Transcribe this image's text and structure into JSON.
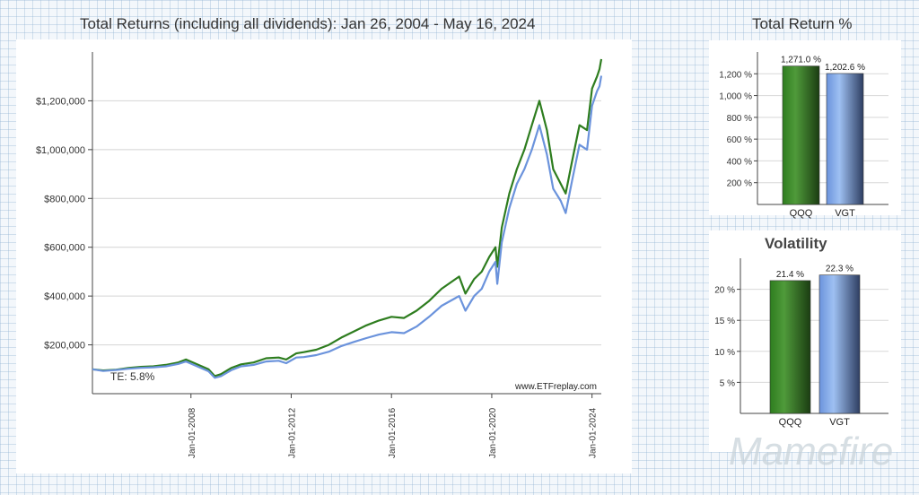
{
  "chart_data": [
    {
      "type": "line",
      "title": "Total Returns (including all dividends): Jan 26, 2004 - May 16, 2024",
      "y_ticks": [
        200000,
        400000,
        600000,
        800000,
        1000000,
        1200000
      ],
      "y_tick_labels": [
        "$200,000",
        "$400,000",
        "$600,000",
        "$800,000",
        "$1,000,000",
        "$1,200,000"
      ],
      "ylim": [
        0,
        1400000
      ],
      "x_ticks": [
        2008,
        2012,
        2016,
        2020,
        2024
      ],
      "x_tick_labels": [
        "Jan-01-2008",
        "Jan-01-2012",
        "Jan-01-2016",
        "Jan-01-2020",
        "Jan-01-2024"
      ],
      "xlim": [
        2004.07,
        2024.37
      ],
      "grid": true,
      "annotation": "TE:  5.8%",
      "source": "www.ETFreplay.com",
      "series": [
        {
          "color": "#2e7d1f",
          "x": [
            2004.07,
            2004.5,
            2005.0,
            2005.5,
            2006.0,
            2006.5,
            2007.0,
            2007.5,
            2007.8,
            2008.3,
            2008.7,
            2008.95,
            2009.2,
            2009.6,
            2010.0,
            2010.5,
            2011.0,
            2011.5,
            2011.8,
            2012.2,
            2012.5,
            2013.0,
            2013.5,
            2014.0,
            2014.5,
            2015.0,
            2015.5,
            2016.0,
            2016.5,
            2017.0,
            2017.5,
            2018.0,
            2018.7,
            2018.95,
            2019.3,
            2019.6,
            2019.9,
            2020.15,
            2020.22,
            2020.4,
            2020.7,
            2021.0,
            2021.3,
            2021.6,
            2021.9,
            2022.2,
            2022.45,
            2022.75,
            2022.95,
            2023.2,
            2023.5,
            2023.8,
            2024.0,
            2024.2,
            2024.3,
            2024.37
          ],
          "y": [
            100000,
            95000,
            98000,
            105000,
            110000,
            112000,
            118000,
            128000,
            140000,
            118000,
            100000,
            72000,
            80000,
            105000,
            120000,
            128000,
            145000,
            148000,
            140000,
            165000,
            170000,
            180000,
            200000,
            230000,
            255000,
            280000,
            300000,
            315000,
            310000,
            340000,
            380000,
            430000,
            480000,
            410000,
            470000,
            500000,
            560000,
            600000,
            520000,
            680000,
            820000,
            920000,
            1000000,
            1100000,
            1200000,
            1080000,
            920000,
            860000,
            820000,
            950000,
            1100000,
            1080000,
            1250000,
            1300000,
            1330000,
            1371000
          ]
        },
        {
          "color": "#6b93dc",
          "x": [
            2004.07,
            2004.5,
            2005.0,
            2005.5,
            2006.0,
            2006.5,
            2007.0,
            2007.5,
            2007.8,
            2008.3,
            2008.7,
            2008.95,
            2009.2,
            2009.6,
            2010.0,
            2010.5,
            2011.0,
            2011.5,
            2011.8,
            2012.2,
            2012.5,
            2013.0,
            2013.5,
            2014.0,
            2014.5,
            2015.0,
            2015.5,
            2016.0,
            2016.5,
            2017.0,
            2017.5,
            2018.0,
            2018.7,
            2018.95,
            2019.3,
            2019.6,
            2019.9,
            2020.15,
            2020.22,
            2020.4,
            2020.7,
            2021.0,
            2021.3,
            2021.6,
            2021.9,
            2022.2,
            2022.45,
            2022.75,
            2022.95,
            2023.2,
            2023.5,
            2023.8,
            2024.0,
            2024.2,
            2024.3,
            2024.37
          ],
          "y": [
            100000,
            93000,
            97000,
            102000,
            106000,
            108000,
            112000,
            122000,
            132000,
            110000,
            92000,
            65000,
            72000,
            96000,
            112000,
            118000,
            132000,
            135000,
            125000,
            148000,
            150000,
            158000,
            172000,
            195000,
            212000,
            228000,
            242000,
            252000,
            248000,
            275000,
            315000,
            360000,
            400000,
            340000,
            400000,
            430000,
            500000,
            540000,
            450000,
            620000,
            760000,
            860000,
            920000,
            1000000,
            1100000,
            980000,
            840000,
            790000,
            740000,
            870000,
            1020000,
            1000000,
            1180000,
            1240000,
            1260000,
            1302600
          ]
        }
      ]
    },
    {
      "type": "bar",
      "title": "Total Return %",
      "categories": [
        "QQQ",
        "VGT"
      ],
      "values": [
        1271.0,
        1202.6
      ],
      "value_labels": [
        "1,271.0 %",
        "1,202.6 %"
      ],
      "y_ticks": [
        200,
        400,
        600,
        800,
        1000,
        1200
      ],
      "y_tick_labels": [
        "200 %",
        "400 %",
        "600 %",
        "800 %",
        "1,000 %",
        "1,200 %"
      ],
      "ylim": [
        0,
        1400
      ],
      "grid": true,
      "colors": [
        "#2e7d1f",
        "#6b93dc"
      ]
    },
    {
      "type": "bar",
      "title": "Volatility",
      "categories": [
        "QQQ",
        "VGT"
      ],
      "values": [
        21.4,
        22.3
      ],
      "value_labels": [
        "21.4 %",
        "22.3 %"
      ],
      "y_ticks": [
        5,
        10,
        15,
        20
      ],
      "y_tick_labels": [
        "5 %",
        "10 %",
        "15 %",
        "20 %"
      ],
      "ylim": [
        0,
        25
      ],
      "grid": true,
      "colors": [
        "#2e7d1f",
        "#6b93dc"
      ]
    }
  ],
  "watermark": "Mamefire"
}
